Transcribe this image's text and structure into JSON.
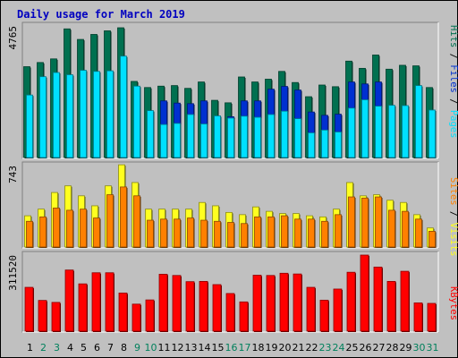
{
  "title": "Daily usage for March 2019",
  "colors": {
    "frame": "#c0c0c0",
    "panel": "#c0c0c0",
    "title": "#0000c0",
    "hits": "#007050",
    "files": "#0030d0",
    "pages": "#00e0ff",
    "visits": "#ffff20",
    "sites": "#ff8000",
    "kbytes": "#ff0000",
    "weekday_label": "#000000",
    "weekend_label": "#00805c"
  },
  "chart_data": [
    {
      "type": "bar",
      "name": "hits-files-pages",
      "max_label": "4765",
      "ymax": 4765,
      "legend": [
        "Hits",
        "Files",
        "Pages"
      ],
      "categories": [
        "1",
        "2",
        "3",
        "4",
        "5",
        "6",
        "7",
        "8",
        "9",
        "10",
        "11",
        "12",
        "13",
        "14",
        "15",
        "16",
        "17",
        "18",
        "19",
        "20",
        "21",
        "22",
        "23",
        "24",
        "25",
        "26",
        "27",
        "28",
        "29",
        "30",
        "31"
      ],
      "weekend_days": [
        2,
        3,
        9,
        10,
        16,
        17,
        23,
        24,
        30,
        31
      ],
      "series": [
        {
          "name": "Hits",
          "values": [
            3300,
            3450,
            3580,
            4660,
            4280,
            4460,
            4590,
            4700,
            2770,
            2550,
            2600,
            2620,
            2520,
            2750,
            2090,
            2000,
            2930,
            2750,
            2850,
            3130,
            2730,
            2220,
            2640,
            2580,
            3500,
            3240,
            3720,
            3210,
            3350,
            3330,
            2550
          ]
        },
        {
          "name": "Files",
          "values": [
            0,
            0,
            0,
            0,
            0,
            0,
            0,
            0,
            0,
            0,
            2070,
            1990,
            1970,
            2070,
            1510,
            1500,
            2070,
            2070,
            2490,
            2590,
            2460,
            1670,
            1550,
            1590,
            2750,
            2680,
            2750,
            0,
            0,
            0,
            0
          ]
        },
        {
          "name": "Pages",
          "values": [
            2280,
            2940,
            3090,
            3010,
            3170,
            3130,
            3150,
            3680,
            2600,
            1720,
            1220,
            1260,
            1580,
            1240,
            1530,
            1450,
            1520,
            1480,
            1580,
            1700,
            1430,
            920,
            1020,
            950,
            1810,
            2110,
            1880,
            1910,
            1900,
            2620,
            1740
          ]
        }
      ]
    },
    {
      "type": "bar",
      "name": "visits-sites",
      "max_label": "743",
      "ymax": 743,
      "legend": [
        "Visits",
        "Sites"
      ],
      "categories": [
        "1",
        "2",
        "3",
        "4",
        "5",
        "6",
        "7",
        "8",
        "9",
        "10",
        "11",
        "12",
        "13",
        "14",
        "15",
        "16",
        "17",
        "18",
        "19",
        "20",
        "21",
        "22",
        "23",
        "24",
        "25",
        "26",
        "27",
        "28",
        "29",
        "30",
        "31"
      ],
      "series": [
        {
          "name": "Visits",
          "values": [
            290,
            350,
            500,
            560,
            470,
            380,
            560,
            750,
            590,
            350,
            350,
            350,
            350,
            410,
            380,
            320,
            300,
            370,
            330,
            310,
            310,
            290,
            280,
            350,
            590,
            470,
            480,
            430,
            410,
            300,
            180
          ]
        },
        {
          "name": "Sites",
          "values": [
            240,
            280,
            360,
            340,
            350,
            270,
            480,
            550,
            470,
            250,
            260,
            260,
            270,
            250,
            240,
            230,
            220,
            280,
            280,
            290,
            260,
            260,
            240,
            300,
            460,
            450,
            460,
            340,
            330,
            260,
            150
          ]
        }
      ]
    },
    {
      "type": "bar",
      "name": "kbytes",
      "max_label": "311520",
      "ymax": 311520,
      "legend": [
        "KBytes"
      ],
      "categories": [
        "1",
        "2",
        "3",
        "4",
        "5",
        "6",
        "7",
        "8",
        "9",
        "10",
        "11",
        "12",
        "13",
        "14",
        "15",
        "16",
        "17",
        "18",
        "19",
        "20",
        "21",
        "22",
        "23",
        "24",
        "25",
        "26",
        "27",
        "28",
        "29",
        "30",
        "31"
      ],
      "series": [
        {
          "name": "KBytes",
          "values": [
            181000,
            128000,
            120000,
            251000,
            195000,
            240000,
            240000,
            158000,
            113000,
            130000,
            234000,
            229000,
            204000,
            205000,
            192000,
            156000,
            122000,
            230000,
            229000,
            238000,
            235000,
            181000,
            129000,
            174000,
            242000,
            311520,
            263000,
            205000,
            246000,
            118000,
            116000
          ]
        }
      ]
    }
  ]
}
